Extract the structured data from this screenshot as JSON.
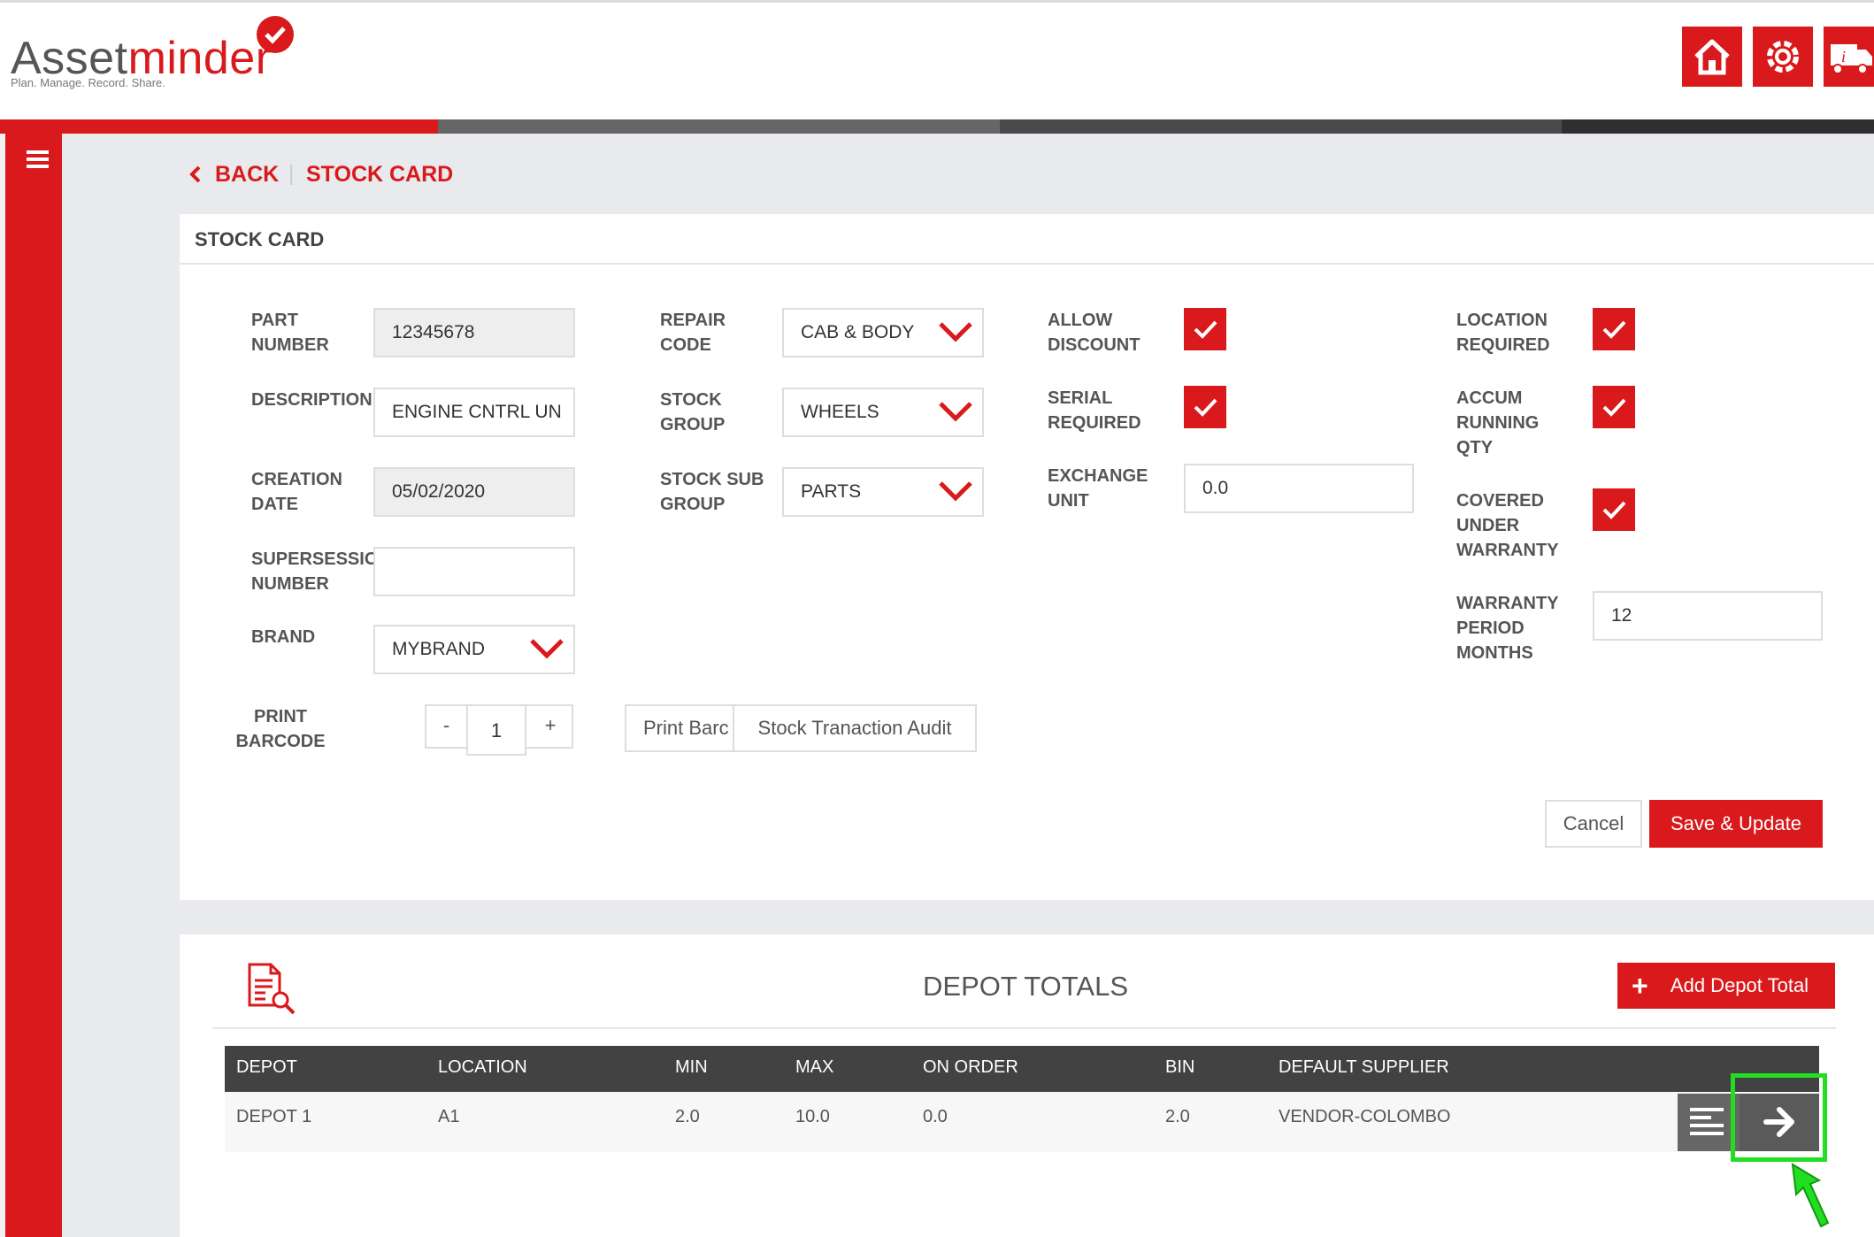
{
  "app": {
    "logo_prefix": "Asset",
    "logo_suffix": "minder",
    "tagline": "Plan. Manage. Record. Share."
  },
  "header_icons": [
    "home-icon",
    "settings-icon",
    "truck-info-icon"
  ],
  "breadcrumb": {
    "back": "BACK",
    "current": "STOCK CARD"
  },
  "form": {
    "title": "STOCK CARD",
    "part_number": {
      "label": "PART NUMBER",
      "value": "12345678"
    },
    "description": {
      "label": "DESCRIPTION",
      "value": "ENGINE CNTRL UN"
    },
    "creation_date": {
      "label": "CREATION DATE",
      "value": "05/02/2020"
    },
    "supersession": {
      "label": "SUPERSESSIO NUMBER",
      "value": ""
    },
    "brand": {
      "label": "BRAND",
      "value": "MYBRAND"
    },
    "print_barcode": {
      "label": "PRINT BARCODE",
      "minus": "-",
      "qty": "1",
      "plus": "+"
    },
    "repair_code": {
      "label": "REPAIR CODE",
      "value": "CAB & BODY"
    },
    "stock_group": {
      "label": "STOCK GROUP",
      "value": "WHEELS"
    },
    "stock_sub_group": {
      "label": "STOCK SUB GROUP",
      "value": "PARTS"
    },
    "print_barcode_button": "Print Barc",
    "stock_audit_button": "Stock Tranaction Audit",
    "allow_discount": {
      "label": "ALLOW DISCOUNT",
      "checked": true
    },
    "serial_required": {
      "label": "SERIAL REQUIRED",
      "checked": true
    },
    "exchange_unit": {
      "label": "EXCHANGE UNIT",
      "value": "0.0"
    },
    "location_required": {
      "label": "LOCATION REQUIRED",
      "checked": true
    },
    "accum_running_qty": {
      "label": "ACCUM RUNNING QTY",
      "checked": true
    },
    "covered_under_warranty": {
      "label": "COVERED UNDER WARRANTY",
      "checked": true
    },
    "warranty_period": {
      "label": "WARRANTY PERIOD MONTHS",
      "value": "12"
    },
    "cancel": "Cancel",
    "save": "Save & Update"
  },
  "depot": {
    "title": "DEPOT TOTALS",
    "add_button": "Add Depot Total",
    "columns": [
      "DEPOT",
      "LOCATION",
      "MIN",
      "MAX",
      "ON ORDER",
      "BIN",
      "DEFAULT SUPPLIER"
    ],
    "rows": [
      [
        "DEPOT 1",
        "A1",
        "2.0",
        "10.0",
        "0.0",
        "2.0",
        "VENDOR-COLOMBO"
      ]
    ]
  },
  "colors": {
    "accent": "#d9191c",
    "highlight": "#22dd22",
    "table_header": "#424242"
  }
}
